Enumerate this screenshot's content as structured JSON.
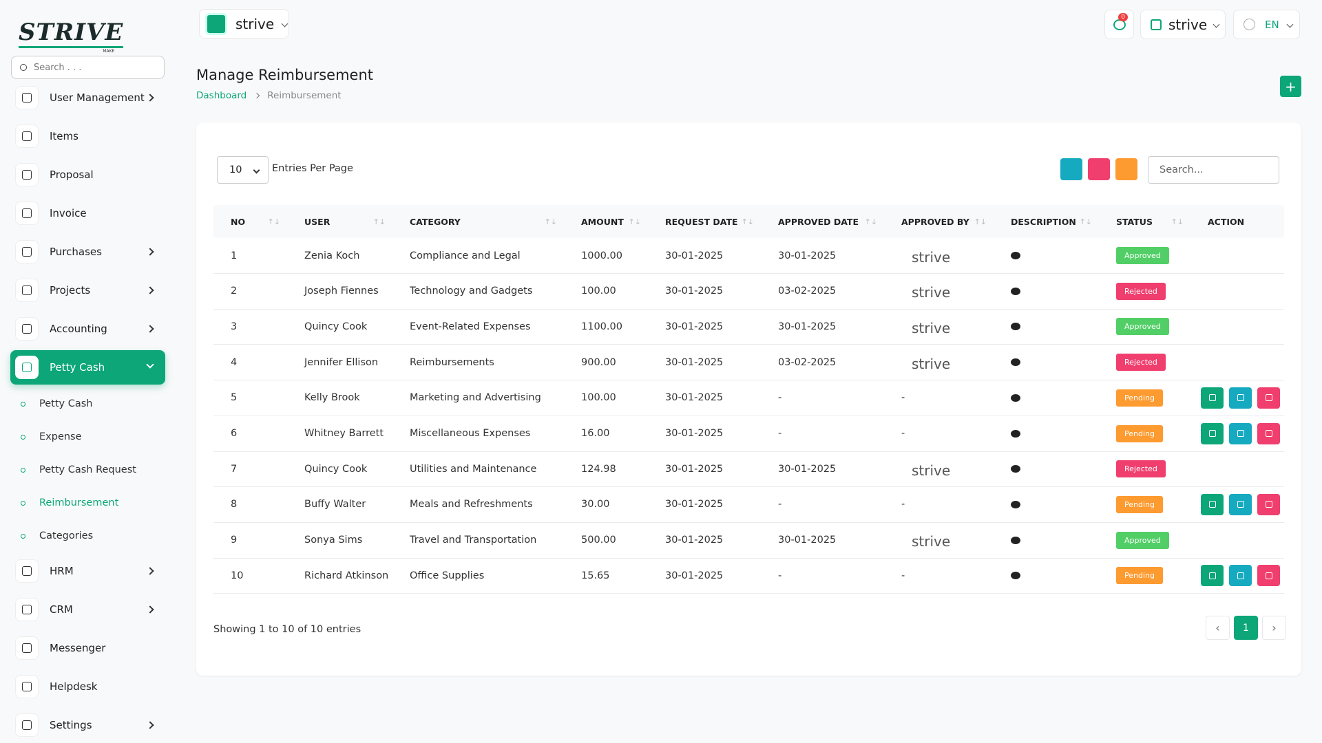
{
  "sidebar": {
    "logo": "STRIVE",
    "logo_sub": "MAKE",
    "search_placeholder": "Search . . .",
    "menu": [
      {
        "label": "User Management",
        "expandable": true
      },
      {
        "label": "Items",
        "expandable": false
      },
      {
        "label": "Proposal",
        "expandable": false
      },
      {
        "label": "Invoice",
        "expandable": false
      },
      {
        "label": "Purchases",
        "expandable": true
      },
      {
        "label": "Projects",
        "expandable": true
      },
      {
        "label": "Accounting",
        "expandable": true
      },
      {
        "label": "Petty Cash",
        "expandable": true,
        "active": true,
        "submenu": [
          {
            "label": "Petty Cash"
          },
          {
            "label": "Expense"
          },
          {
            "label": "Petty Cash Request"
          },
          {
            "label": "Reimbursement",
            "active": true
          },
          {
            "label": "Categories"
          }
        ]
      },
      {
        "label": "HRM",
        "expandable": true
      },
      {
        "label": "CRM",
        "expandable": true
      },
      {
        "label": "Messenger",
        "expandable": false
      },
      {
        "label": "Helpdesk",
        "expandable": false
      },
      {
        "label": "Settings",
        "expandable": true
      }
    ]
  },
  "topbar": {
    "workspace": "strive",
    "notifications": "0",
    "user": "strive",
    "language": "EN"
  },
  "header": {
    "title": "Manage Reimbursement",
    "breadcrumb": [
      "Dashboard",
      "Reimbursement"
    ]
  },
  "table": {
    "entries": "10",
    "entries_label": "Entries Per Page",
    "search_placeholder": "Search...",
    "columns": [
      "NO",
      "USER",
      "CATEGORY",
      "AMOUNT",
      "REQUEST DATE",
      "APPROVED DATE",
      "APPROVED BY",
      "DESCRIPTION",
      "STATUS",
      "ACTION"
    ],
    "rows": [
      {
        "no": "1",
        "user": "Zenia Koch",
        "category": "Compliance and Legal",
        "amount": "1000.00",
        "request_date": "30-01-2025",
        "approved_date": "30-01-2025",
        "approved_by": "strive",
        "status": "Approved"
      },
      {
        "no": "2",
        "user": "Joseph Fiennes",
        "category": "Technology and Gadgets",
        "amount": "100.00",
        "request_date": "30-01-2025",
        "approved_date": "03-02-2025",
        "approved_by": "strive",
        "status": "Rejected"
      },
      {
        "no": "3",
        "user": "Quincy Cook",
        "category": "Event-Related Expenses",
        "amount": "1100.00",
        "request_date": "30-01-2025",
        "approved_date": "30-01-2025",
        "approved_by": "strive",
        "status": "Approved"
      },
      {
        "no": "4",
        "user": "Jennifer Ellison",
        "category": "Reimbursements",
        "amount": "900.00",
        "request_date": "30-01-2025",
        "approved_date": "03-02-2025",
        "approved_by": "strive",
        "status": "Rejected"
      },
      {
        "no": "5",
        "user": "Kelly Brook",
        "category": "Marketing and Advertising",
        "amount": "100.00",
        "request_date": "30-01-2025",
        "approved_date": "-",
        "approved_by": "-",
        "status": "Pending"
      },
      {
        "no": "6",
        "user": "Whitney Barrett",
        "category": "Miscellaneous Expenses",
        "amount": "16.00",
        "request_date": "30-01-2025",
        "approved_date": "-",
        "approved_by": "-",
        "status": "Pending"
      },
      {
        "no": "7",
        "user": "Quincy Cook",
        "category": "Utilities and Maintenance",
        "amount": "124.98",
        "request_date": "30-01-2025",
        "approved_date": "30-01-2025",
        "approved_by": "strive",
        "status": "Rejected"
      },
      {
        "no": "8",
        "user": "Buffy Walter",
        "category": "Meals and Refreshments",
        "amount": "30.00",
        "request_date": "30-01-2025",
        "approved_date": "-",
        "approved_by": "-",
        "status": "Pending"
      },
      {
        "no": "9",
        "user": "Sonya Sims",
        "category": "Travel and Transportation",
        "amount": "500.00",
        "request_date": "30-01-2025",
        "approved_date": "30-01-2025",
        "approved_by": "strive",
        "status": "Approved"
      },
      {
        "no": "10",
        "user": "Richard Atkinson",
        "category": "Office Supplies",
        "amount": "15.65",
        "request_date": "30-01-2025",
        "approved_date": "-",
        "approved_by": "-",
        "status": "Pending"
      }
    ],
    "footer": "Showing 1 to 10 of 10 entries",
    "current_page": "1"
  }
}
